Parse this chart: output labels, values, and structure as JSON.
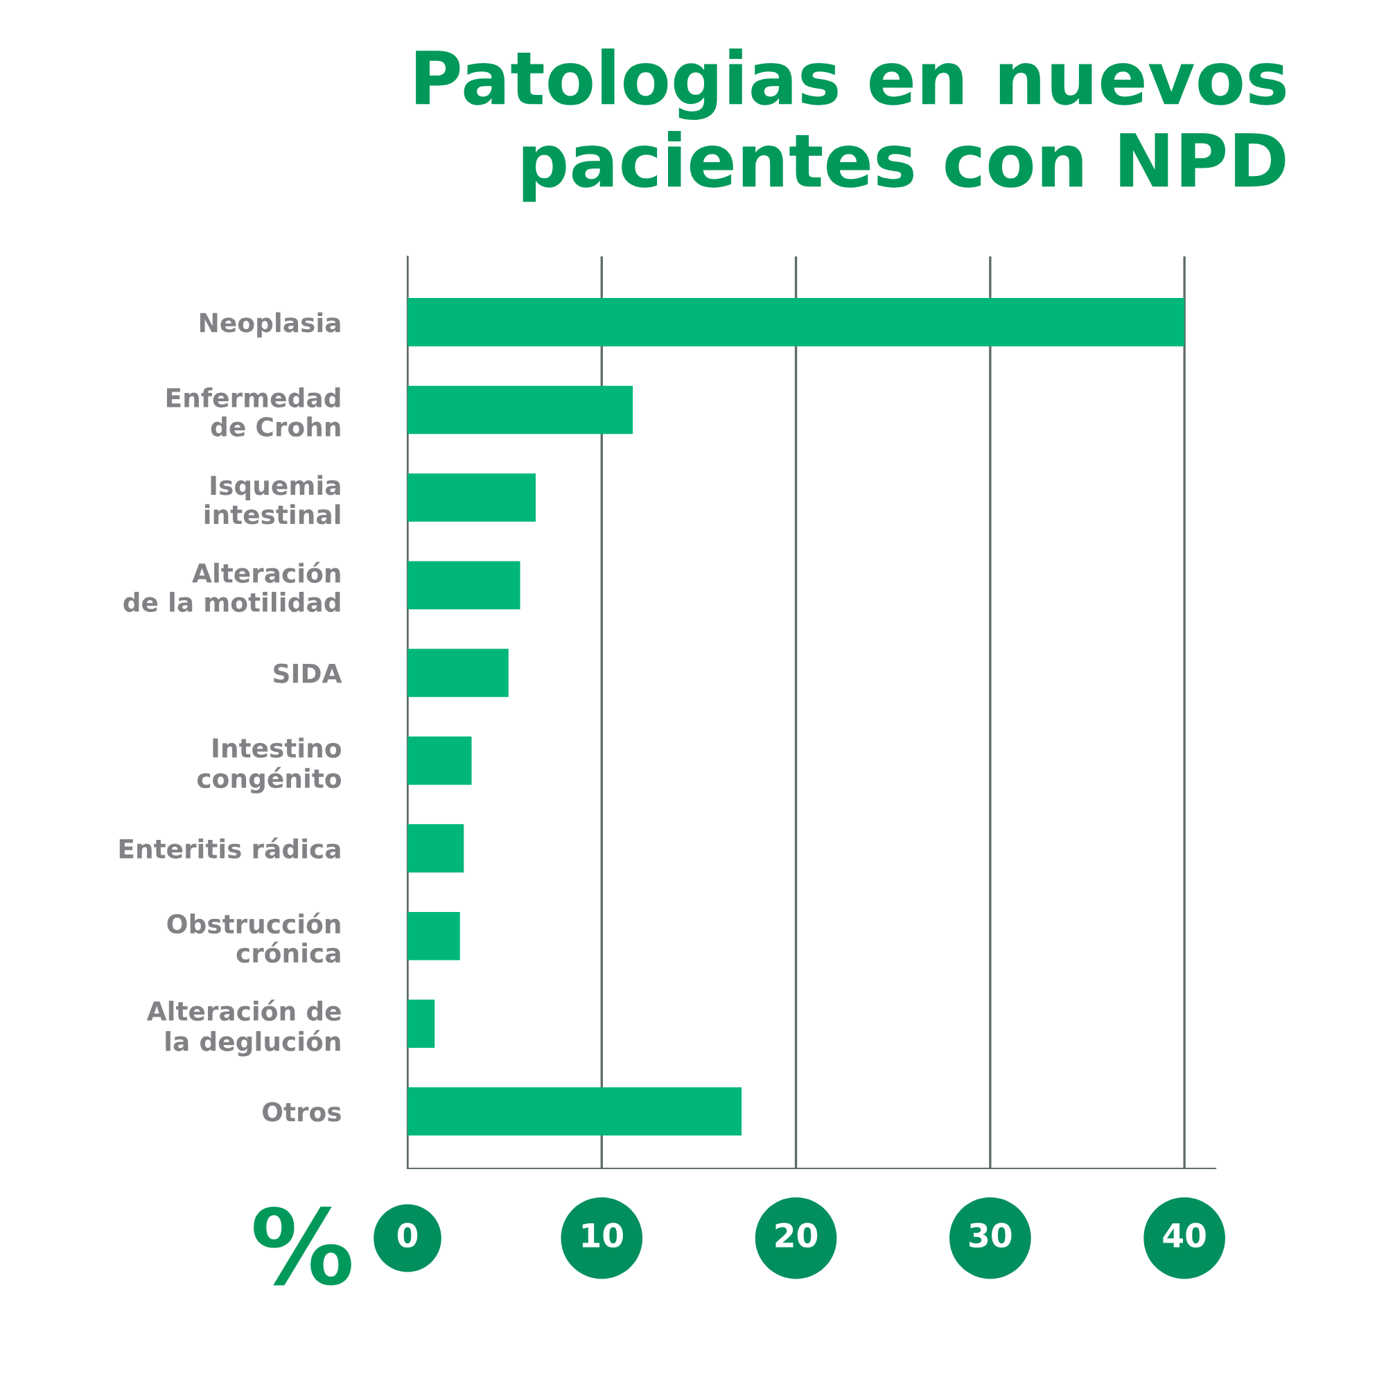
{
  "chart_data": {
    "type": "bar",
    "orientation": "horizontal",
    "title": "Patologias en nuevos pacientes con NPD",
    "xlabel": "%",
    "categories": [
      "Neoplasia",
      "Enfermedad\nde Crohn",
      "Isquemia\nintestinal",
      "Alteración\nde la motilidad",
      "SIDA",
      "Intestino\ncongénito",
      "Enteritis rádica",
      "Obstrucción\ncrónica",
      "Alteración de\nla deglución",
      "Otros"
    ],
    "values": [
      40,
      11.6,
      6.6,
      5.8,
      5.2,
      3.3,
      2.9,
      2.7,
      1.4,
      17.2
    ],
    "color": "#00b67a",
    "xlim": [
      0,
      41.6
    ],
    "xticks": [
      0,
      10,
      20,
      30,
      40
    ],
    "grid": "x"
  }
}
